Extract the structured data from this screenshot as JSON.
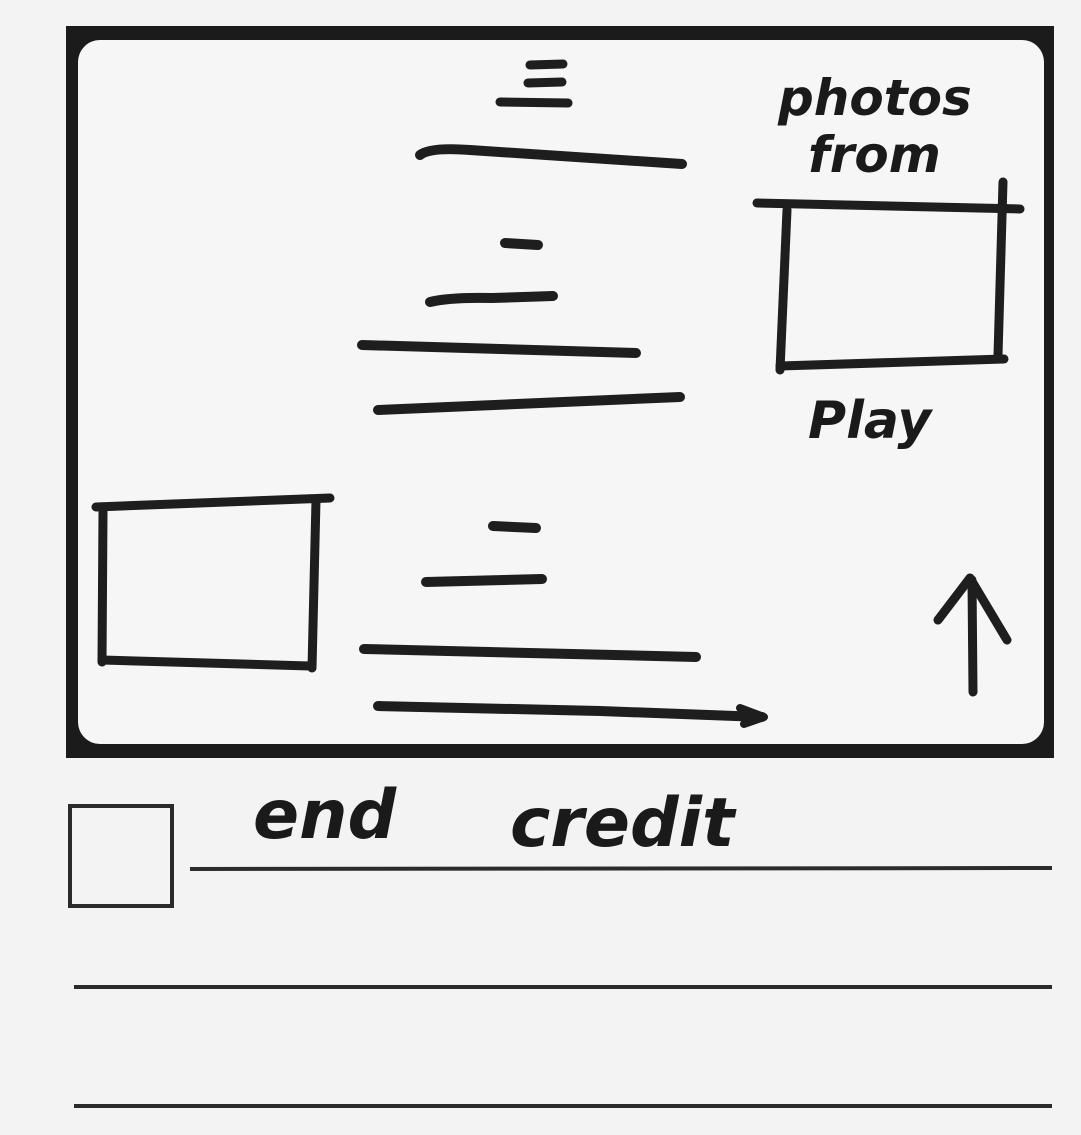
{
  "frame": {
    "photos_label_line1": "photos",
    "photos_label_line2": "from",
    "play_label": "Play"
  },
  "storyboard": {
    "caption_word1": "end",
    "caption_word2": "credit"
  },
  "colors": {
    "ink": "#1e1e1e",
    "paper": "#f3f3f3",
    "screen": "#f6f6f6"
  },
  "icons": {
    "scroll_direction": "up-arrow-icon"
  }
}
